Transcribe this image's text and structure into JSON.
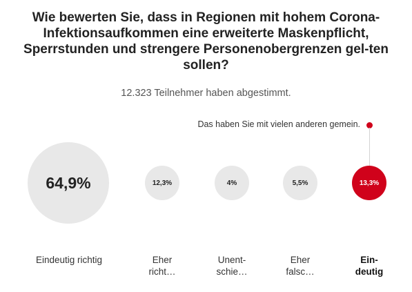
{
  "poll": {
    "question": "Wie bewerten Sie, dass in Regionen mit hohem Corona-Infektionsaufkommen eine erweiterte Maskenpflicht, Sperrstunden und strengere Personenobergrenzen gel-ten sollen?",
    "participants": "12.323 Teilnehmer haben abgestimmt.",
    "annotation": "Das haben Sie mit vielen anderen gemein.",
    "accent_color": "#d0021b",
    "neutral_color": "#e8e8e8",
    "selected_index": 4,
    "options": [
      {
        "label": "Eindeutig richtig",
        "percent": "64,9%",
        "share": 64.9
      },
      {
        "label": "Eher richt…",
        "percent": "12,3%",
        "share": 12.3
      },
      {
        "label": "Unent-schie…",
        "percent": "4%",
        "share": 4.0
      },
      {
        "label": "Eher falsc…",
        "percent": "5,5%",
        "share": 5.5
      },
      {
        "label": "Ein-deutig",
        "percent": "13,3%",
        "share": 13.3
      }
    ]
  }
}
